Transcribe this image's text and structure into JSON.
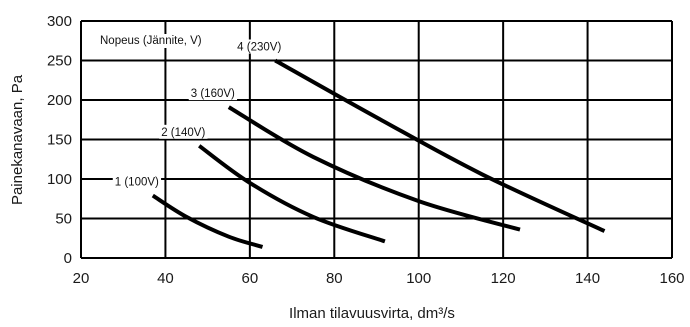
{
  "chart_data": {
    "type": "line",
    "title": "",
    "legend_title": "Nopeus (Jännite, V)",
    "xlabel": "Ilman tilavuusvirta, dm³/s",
    "ylabel": "Painekanavaan, Pa",
    "xlim": [
      20,
      160
    ],
    "ylim": [
      0,
      300
    ],
    "x_ticks": [
      20,
      40,
      60,
      80,
      100,
      120,
      140,
      160
    ],
    "y_ticks": [
      0,
      50,
      100,
      150,
      200,
      250,
      300
    ],
    "x_tick_labels": [
      "20",
      "40",
      "60",
      "80",
      "100",
      "120",
      "140",
      "160"
    ],
    "y_tick_labels": [
      "0",
      "50",
      "100",
      "150",
      "200",
      "250",
      "300"
    ],
    "grid": true,
    "series": [
      {
        "name": "1 (100V)",
        "x": [
          37,
          45,
          55,
          63
        ],
        "y": [
          79,
          52,
          27,
          14
        ]
      },
      {
        "name": "2 (140V)",
        "x": [
          48,
          60,
          75,
          92
        ],
        "y": [
          142,
          95,
          52,
          21
        ]
      },
      {
        "name": "3 (160V)",
        "x": [
          55,
          75,
          100,
          124
        ],
        "y": [
          191,
          128,
          72,
          36
        ]
      },
      {
        "name": "4 (230V)",
        "x": [
          66,
          90,
          115,
          144
        ],
        "y": [
          250,
          178,
          106,
          34
        ]
      }
    ]
  }
}
